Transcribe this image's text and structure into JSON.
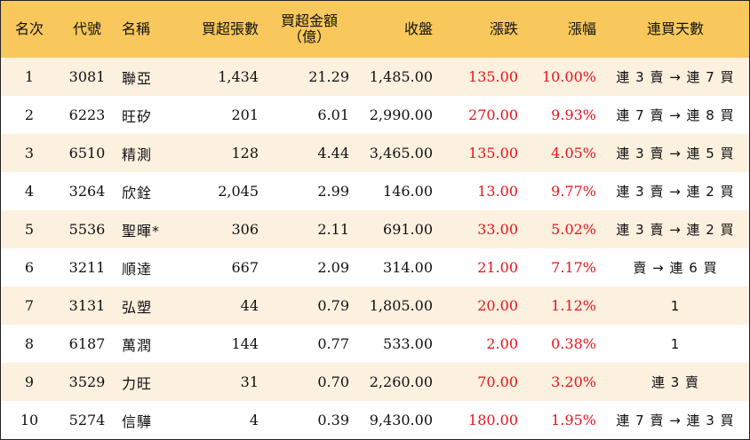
{
  "headers": {
    "rank": "名次",
    "code": "代號",
    "name": "名稱",
    "lots": "買超張數",
    "amount": "買超金額\n（億）",
    "close": "收盤",
    "change": "漲跌",
    "pct": "漲幅",
    "streak": "連買天數"
  },
  "rows": [
    {
      "rank": "1",
      "code": "3081",
      "name": "聯亞",
      "lots": "1,434",
      "amount": "21.29",
      "close": "1,485.00",
      "change": "135.00",
      "pct": "10.00%",
      "streak": "連 3 賣 → 連 7 買"
    },
    {
      "rank": "2",
      "code": "6223",
      "name": "旺矽",
      "lots": "201",
      "amount": "6.01",
      "close": "2,990.00",
      "change": "270.00",
      "pct": "9.93%",
      "streak": "連 7 賣 → 連 8 買"
    },
    {
      "rank": "3",
      "code": "6510",
      "name": "精測",
      "lots": "128",
      "amount": "4.44",
      "close": "3,465.00",
      "change": "135.00",
      "pct": "4.05%",
      "streak": "連 3 賣 → 連 5 買"
    },
    {
      "rank": "4",
      "code": "3264",
      "name": "欣銓",
      "lots": "2,045",
      "amount": "2.99",
      "close": "146.00",
      "change": "13.00",
      "pct": "9.77%",
      "streak": "連 3 賣 → 連 2 買"
    },
    {
      "rank": "5",
      "code": "5536",
      "name": "聖暉*",
      "lots": "306",
      "amount": "2.11",
      "close": "691.00",
      "change": "33.00",
      "pct": "5.02%",
      "streak": "連 3 賣 → 連 2 買"
    },
    {
      "rank": "6",
      "code": "3211",
      "name": "順達",
      "lots": "667",
      "amount": "2.09",
      "close": "314.00",
      "change": "21.00",
      "pct": "7.17%",
      "streak": "賣 → 連 6 買"
    },
    {
      "rank": "7",
      "code": "3131",
      "name": "弘塑",
      "lots": "44",
      "amount": "0.79",
      "close": "1,805.00",
      "change": "20.00",
      "pct": "1.12%",
      "streak": "1"
    },
    {
      "rank": "8",
      "code": "6187",
      "name": "萬潤",
      "lots": "144",
      "amount": "0.77",
      "close": "533.00",
      "change": "2.00",
      "pct": "0.38%",
      "streak": "1"
    },
    {
      "rank": "9",
      "code": "3529",
      "name": "力旺",
      "lots": "31",
      "amount": "0.70",
      "close": "2,260.00",
      "change": "70.00",
      "pct": "3.20%",
      "streak": "連 3 賣"
    },
    {
      "rank": "10",
      "code": "5274",
      "name": "信驊",
      "lots": "4",
      "amount": "0.39",
      "close": "9,430.00",
      "change": "180.00",
      "pct": "1.95%",
      "streak": "連 7 賣 → 連 3 買"
    }
  ],
  "colors": {
    "header_bg": "#f8c85c",
    "row_odd_bg": "#fcf0df",
    "row_even_bg": "#ffffff",
    "positive_change": "#e8141c"
  }
}
